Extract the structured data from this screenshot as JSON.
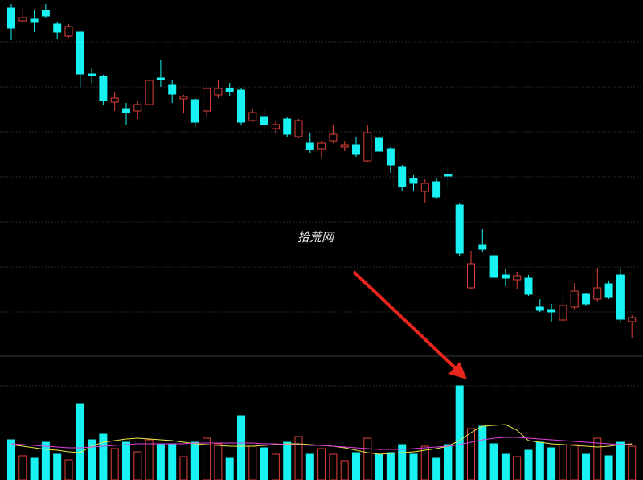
{
  "chart_data": [
    {
      "type": "candlestick",
      "annotation": "拾荒网",
      "up_color": "#e0413a",
      "down_color": "#19f2f2",
      "ylim": [
        0,
        443
      ],
      "open": [
        433,
        417,
        419,
        430,
        413,
        398,
        403,
        351,
        348,
        316,
        308,
        305,
        313,
        346,
        337,
        320,
        319,
        305,
        325,
        333,
        331,
        293,
        298,
        283,
        295,
        273,
        265,
        258,
        268,
        260,
        263,
        243,
        271,
        258,
        235,
        221,
        205,
        217,
        226,
        188,
        85,
        138,
        125,
        101,
        95,
        97,
        61,
        58,
        45,
        61,
        77,
        71,
        90,
        101,
        43
      ],
      "high": [
        438,
        433,
        431,
        438,
        416,
        413,
        405,
        358,
        350,
        328,
        315,
        318,
        347,
        368,
        343,
        325,
        321,
        335,
        343,
        340,
        333,
        308,
        308,
        293,
        297,
        295,
        278,
        268,
        287,
        268,
        273,
        288,
        283,
        260,
        238,
        225,
        220,
        221,
        236,
        190,
        131,
        158,
        133,
        108,
        105,
        101,
        71,
        65,
        81,
        91,
        79,
        110,
        93,
        108,
        51
      ],
      "low": [
        393,
        415,
        403,
        421,
        395,
        396,
        335,
        340,
        313,
        305,
        288,
        295,
        311,
        335,
        315,
        303,
        285,
        297,
        321,
        323,
        288,
        291,
        283,
        278,
        273,
        271,
        253,
        246,
        265,
        255,
        248,
        241,
        251,
        228,
        205,
        205,
        191,
        195,
        211,
        125,
        83,
        130,
        95,
        87,
        83,
        75,
        55,
        43,
        43,
        58,
        63,
        68,
        71,
        43,
        23
      ],
      "close": [
        408,
        421,
        416,
        423,
        403,
        410,
        351,
        349,
        318,
        321,
        303,
        313,
        343,
        344,
        326,
        323,
        291,
        333,
        333,
        329,
        291,
        303,
        288,
        288,
        276,
        293,
        257,
        265,
        276,
        263,
        251,
        278,
        255,
        238,
        211,
        215,
        215,
        198,
        224,
        128,
        115,
        133,
        98,
        97,
        100,
        77,
        57,
        55,
        63,
        81,
        65,
        85,
        73,
        46,
        48
      ]
    },
    {
      "type": "bar",
      "ylim": [
        0,
        154
      ],
      "values": [
        50,
        30,
        27,
        47,
        32,
        25,
        95,
        50,
        57,
        39,
        47,
        35,
        50,
        45,
        44,
        29,
        47,
        52,
        45,
        27,
        80,
        42,
        40,
        32,
        47,
        54,
        32,
        39,
        32,
        24,
        34,
        52,
        32,
        34,
        44,
        32,
        42,
        27,
        44,
        117,
        64,
        67,
        45,
        32,
        29,
        37,
        47,
        40,
        44,
        44,
        32,
        52,
        30,
        47,
        42
      ],
      "series": [
        {
          "color": "#e8e84a",
          "values": [
            44,
            42,
            40,
            38,
            37,
            35,
            34,
            42,
            47,
            49,
            51,
            52,
            51,
            50,
            49,
            47,
            45,
            44,
            43,
            42,
            42,
            42,
            43,
            44,
            45,
            45,
            44,
            43,
            42,
            40,
            37,
            34,
            32,
            33,
            34,
            35,
            37,
            39,
            42,
            49,
            59,
            67,
            68,
            69,
            62,
            49,
            47,
            45,
            44,
            43,
            42,
            41,
            42,
            44,
            45
          ]
        },
        {
          "color": "#e040e0",
          "values": [
            45,
            44,
            43,
            42,
            41,
            40,
            40,
            41,
            42,
            43,
            44,
            45,
            45,
            45,
            45,
            45,
            46,
            46,
            46,
            46,
            46,
            46,
            45,
            45,
            44,
            44,
            43,
            43,
            42,
            41,
            40,
            39,
            38,
            38,
            38,
            39,
            40,
            41,
            42,
            44,
            47,
            50,
            52,
            53,
            53,
            52,
            51,
            50,
            49,
            48,
            47,
            46,
            45,
            44,
            44
          ]
        }
      ]
    }
  ]
}
